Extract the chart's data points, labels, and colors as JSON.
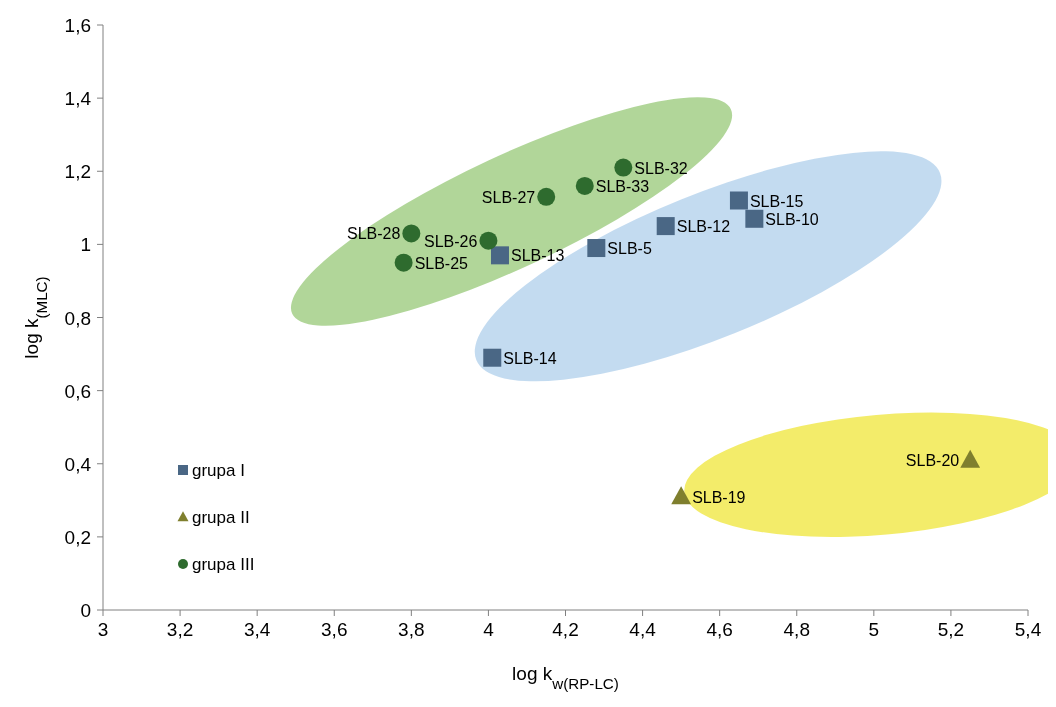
{
  "chart_data": {
    "type": "scatter",
    "xlabel": "log k$_{w(RP-LC)}$",
    "ylabel": "log k$_{(MLC)}$",
    "xlim": [
      3,
      5.4
    ],
    "ylim": [
      0,
      1.6
    ],
    "xticks": [
      3,
      {
        "value": 3.2,
        "label": "3,2"
      },
      {
        "value": 3.4,
        "label": "3,4"
      },
      {
        "value": 3.6,
        "label": "3,6"
      },
      {
        "value": 3.8,
        "label": "3,8"
      },
      4,
      {
        "value": 4.2,
        "label": "4,2"
      },
      {
        "value": 4.4,
        "label": "4,4"
      },
      {
        "value": 4.6,
        "label": "4,6"
      },
      {
        "value": 4.8,
        "label": "4,8"
      },
      5,
      {
        "value": 5.2,
        "label": "5,2"
      },
      {
        "value": 5.4,
        "label": "5,4"
      }
    ],
    "yticks": [
      0,
      {
        "value": 0.2,
        "label": "0,2"
      },
      {
        "value": 0.4,
        "label": "0,4"
      },
      {
        "value": 0.6,
        "label": "0,6"
      },
      {
        "value": 0.8,
        "label": "0,8"
      },
      1,
      {
        "value": 1.2,
        "label": "1,2"
      },
      {
        "value": 1.4,
        "label": "1,4"
      },
      {
        "value": 1.6,
        "label": "1,6"
      }
    ],
    "grid": false,
    "legend": "bottom left",
    "series": [
      {
        "name": "grupa I",
        "color": "#4a6785",
        "marker": "square",
        "x": [
          4.03,
          4.28,
          4.46,
          4.65,
          4.69,
          4.01
        ],
        "values": [
          0.97,
          0.99,
          1.05,
          1.12,
          1.07,
          0.69
        ]
      },
      {
        "name": "grupa II",
        "color": "#7f7f2e",
        "marker": "triangle",
        "x": [
          4.5,
          5.25
        ],
        "values": [
          0.31,
          0.41
        ]
      },
      {
        "name": "grupa III",
        "color": "#2e6b2e",
        "marker": "circle",
        "x": [
          3.8,
          3.78,
          4.15,
          4.0,
          4.25,
          4.35
        ],
        "values": [
          1.03,
          0.95,
          1.13,
          1.01,
          1.16,
          1.21
        ]
      }
    ],
    "annotations": [
      {
        "text": "SLB-13",
        "x": 4.03,
        "y": 0.97
      },
      {
        "text": "SLB-5",
        "x": 4.28,
        "y": 0.99
      },
      {
        "text": "SLB-12",
        "x": 4.46,
        "y": 1.05
      },
      {
        "text": "SLB-15",
        "x": 4.65,
        "y": 1.12
      },
      {
        "text": "SLB-10",
        "x": 4.69,
        "y": 1.07
      },
      {
        "text": "SLB-14",
        "x": 4.01,
        "y": 0.69
      },
      {
        "text": "SLB-19",
        "x": 4.5,
        "y": 0.31
      },
      {
        "text": "SLB-20",
        "x": 5.25,
        "y": 0.41
      },
      {
        "text": "SLB-28",
        "x": 3.8,
        "y": 1.03
      },
      {
        "text": "SLB-25",
        "x": 3.78,
        "y": 0.95
      },
      {
        "text": "SLB-27",
        "x": 4.15,
        "y": 1.13
      },
      {
        "text": "SLB-26",
        "x": 4.0,
        "y": 1.01
      },
      {
        "text": "SLB-33",
        "x": 4.25,
        "y": 1.16
      },
      {
        "text": "SLB-32",
        "x": 4.35,
        "y": 1.21
      }
    ]
  }
}
